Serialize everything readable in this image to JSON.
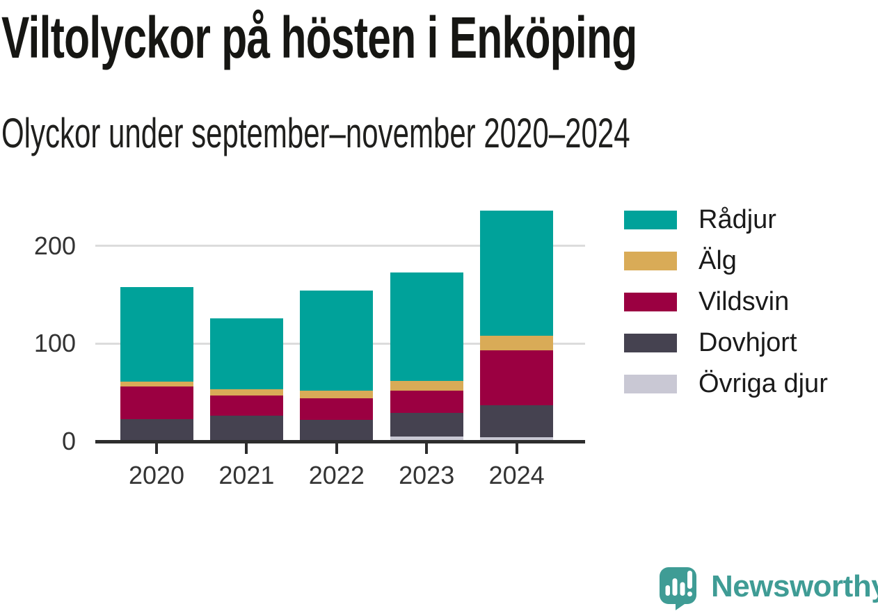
{
  "title": "Viltolyckor på hösten i Enköping",
  "subtitle": "Olyckor under september–november 2020–2024",
  "chart_data": {
    "type": "bar",
    "stacked": true,
    "title": "Viltolyckor på hösten i Enköping",
    "subtitle": "Olyckor under september–november 2020–2024",
    "categories": [
      "2020",
      "2021",
      "2022",
      "2023",
      "2024"
    ],
    "series": [
      {
        "name": "Övriga djur",
        "color": "#c9c8d4",
        "values": [
          1,
          1,
          1,
          5,
          4
        ]
      },
      {
        "name": "Dovhjort",
        "color": "#454250",
        "values": [
          22,
          25,
          21,
          24,
          33
        ]
      },
      {
        "name": "Vildsvin",
        "color": "#9b0041",
        "values": [
          33,
          21,
          22,
          23,
          56
        ]
      },
      {
        "name": "Älg",
        "color": "#d9ab57",
        "values": [
          5,
          6,
          8,
          10,
          15
        ]
      },
      {
        "name": "Rådjur",
        "color": "#00a29a",
        "values": [
          97,
          73,
          102,
          111,
          128
        ]
      }
    ],
    "totals": [
      158,
      126,
      154,
      173,
      236
    ],
    "legend_order": [
      "Rådjur",
      "Älg",
      "Vildsvin",
      "Dovhjort",
      "Övriga djur"
    ],
    "legend_position": "right",
    "xlabel": "",
    "ylabel": "",
    "ylim": [
      0,
      250
    ],
    "yticks": [
      0,
      100,
      200
    ],
    "gridlines": [
      100,
      200
    ],
    "grid": true,
    "axis_color": "#2d2d2d",
    "grid_color": "#dcdcdc",
    "tick_label_color": "#333333"
  },
  "branding": {
    "wordmark": "Newsworthy",
    "color": "#3f9c95",
    "icon": "speech-bubble-bar-chart-icon"
  }
}
